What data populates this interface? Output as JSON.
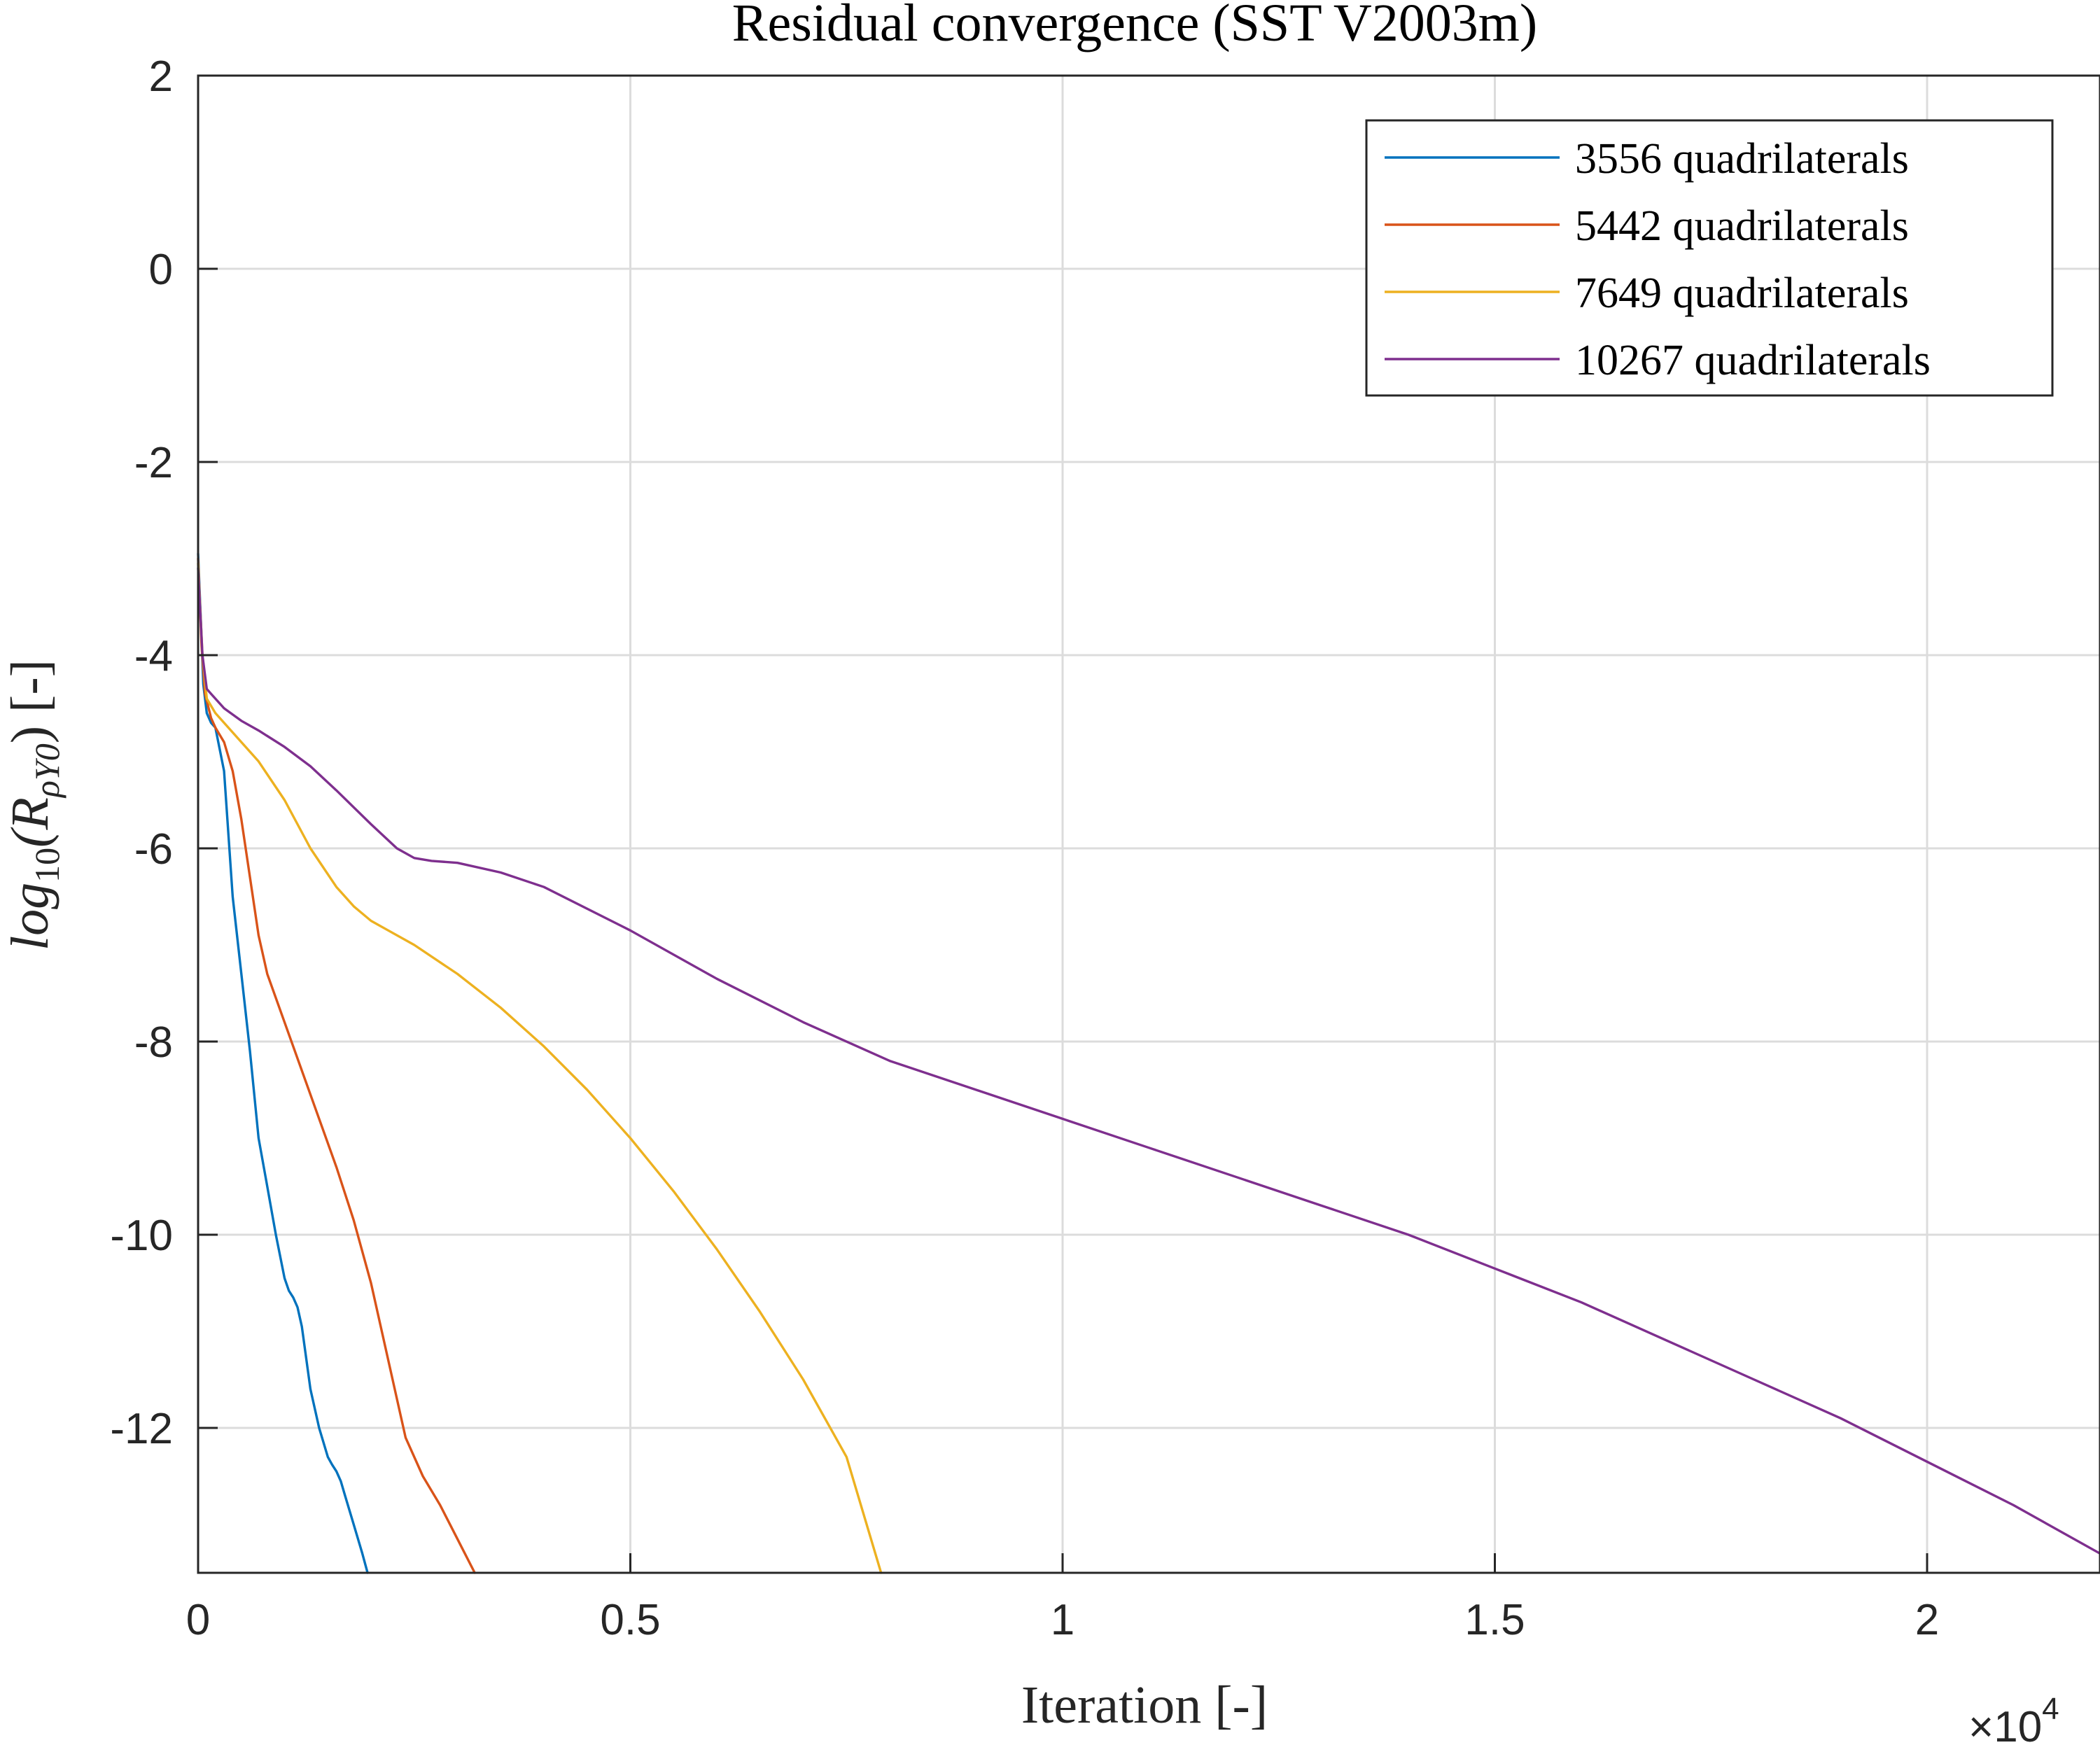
{
  "chart_data": {
    "type": "line",
    "title": "Residual convergence (SST V2003m)",
    "xlabel": "Iteration [-]",
    "ylabel": "log10(RρY0) [-]",
    "ylabel_parts": {
      "main": "log",
      "sub1": "10",
      "open": "(R",
      "sub2": "ρY0",
      "close": ") [-]"
    },
    "x_multiplier": "×10",
    "x_multiplier_exp": "4",
    "xlim": [
      0,
      22000
    ],
    "ylim": [
      -13.5,
      2
    ],
    "x_ticks": [
      0,
      5000,
      10000,
      15000,
      20000
    ],
    "x_tick_labels": [
      "0",
      "0.5",
      "1",
      "1.5",
      "2"
    ],
    "y_ticks": [
      2,
      0,
      -2,
      -4,
      -6,
      -8,
      -10,
      -12
    ],
    "y_tick_labels": [
      "2",
      "0",
      "-2",
      "-4",
      "-6",
      "-8",
      "-10",
      "-12"
    ],
    "grid": true,
    "legend_position": "top-right",
    "series": [
      {
        "name": "3556 quadrilaterals",
        "color": "#0072BD",
        "x": [
          0,
          30,
          60,
          100,
          150,
          200,
          300,
          400,
          500,
          600,
          700,
          800,
          900,
          1000,
          1050,
          1100,
          1150,
          1200,
          1300,
          1400,
          1500,
          1550,
          1600,
          1650,
          1700,
          1800,
          1900,
          1960
        ],
        "y": [
          -2.95,
          -3.6,
          -4.3,
          -4.6,
          -4.7,
          -4.75,
          -5.2,
          -6.5,
          -7.3,
          -8.1,
          -9.0,
          -9.5,
          -10.0,
          -10.45,
          -10.58,
          -10.65,
          -10.75,
          -10.95,
          -11.6,
          -12.0,
          -12.3,
          -12.38,
          -12.45,
          -12.55,
          -12.7,
          -13.0,
          -13.3,
          -13.5
        ]
      },
      {
        "name": "5442 quadrilaterals",
        "color": "#D95319",
        "x": [
          0,
          40,
          80,
          150,
          200,
          300,
          400,
          500,
          600,
          700,
          800,
          1000,
          1200,
          1400,
          1600,
          1800,
          2000,
          2200,
          2400,
          2600,
          2800,
          3000,
          3200
        ],
        "y": [
          -3.0,
          -3.9,
          -4.4,
          -4.65,
          -4.75,
          -4.9,
          -5.2,
          -5.7,
          -6.3,
          -6.9,
          -7.3,
          -7.8,
          -8.3,
          -8.8,
          -9.3,
          -9.85,
          -10.5,
          -11.3,
          -12.1,
          -12.5,
          -12.8,
          -13.15,
          -13.5
        ]
      },
      {
        "name": "7649 quadrilaterals",
        "color": "#EDB120",
        "x": [
          0,
          50,
          100,
          200,
          300,
          500,
          700,
          1000,
          1300,
          1600,
          1800,
          2000,
          2200,
          2500,
          3000,
          3500,
          4000,
          4500,
          5000,
          5500,
          6000,
          6500,
          7000,
          7500,
          7900
        ],
        "y": [
          -3.05,
          -4.0,
          -4.45,
          -4.6,
          -4.7,
          -4.9,
          -5.1,
          -5.5,
          -6.0,
          -6.4,
          -6.6,
          -6.75,
          -6.85,
          -7.0,
          -7.3,
          -7.65,
          -8.05,
          -8.5,
          -9.0,
          -9.55,
          -10.15,
          -10.8,
          -11.5,
          -12.3,
          -13.5
        ]
      },
      {
        "name": "10267 quadrilaterals",
        "color": "#7E2F8E",
        "x": [
          0,
          50,
          100,
          150,
          200,
          300,
          500,
          700,
          1000,
          1300,
          1600,
          2000,
          2300,
          2500,
          2700,
          3000,
          3500,
          4000,
          5000,
          6000,
          7000,
          8000,
          9000,
          10000,
          11000,
          12000,
          13000,
          14000,
          15000,
          16000,
          17000,
          18000,
          19000,
          20000,
          21000,
          22000
        ],
        "y": [
          -3.1,
          -4.0,
          -4.35,
          -4.4,
          -4.45,
          -4.55,
          -4.68,
          -4.78,
          -4.95,
          -5.15,
          -5.4,
          -5.75,
          -6.0,
          -6.1,
          -6.13,
          -6.15,
          -6.25,
          -6.4,
          -6.85,
          -7.35,
          -7.8,
          -8.2,
          -8.5,
          -8.8,
          -9.1,
          -9.4,
          -9.7,
          -10.0,
          -10.35,
          -10.7,
          -11.1,
          -11.5,
          -11.9,
          -12.35,
          -12.8,
          -13.3
        ]
      }
    ]
  }
}
